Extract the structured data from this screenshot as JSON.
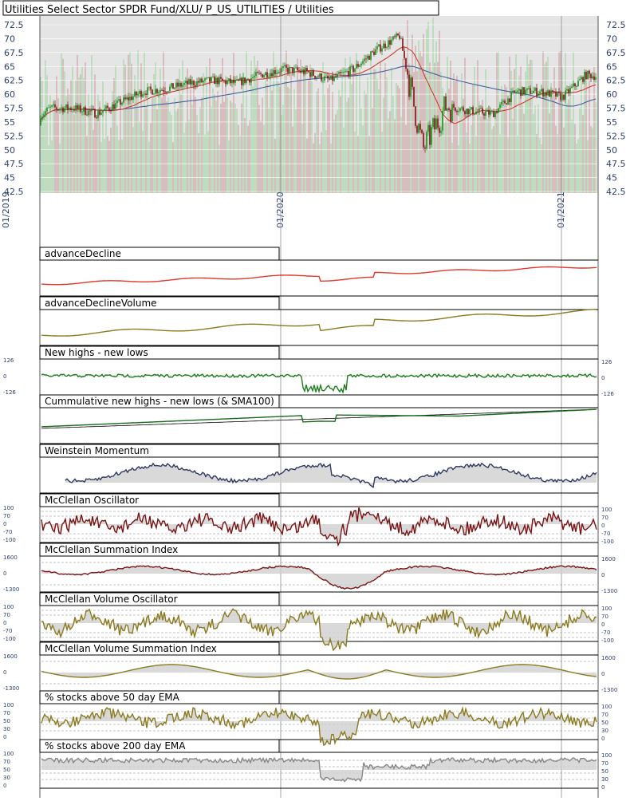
{
  "main": {
    "title": "Utilities Select Sector SPDR Fund/XLU/ P_US_UTILITIES / Utilities",
    "y_ticks": [
      "72.5",
      "70",
      "67.5",
      "65",
      "62.5",
      "60",
      "57.5",
      "55",
      "52.5",
      "50",
      "47.5",
      "45",
      "42.5"
    ],
    "x_labels": [
      "01/2019",
      "01/2020",
      "01/2021"
    ],
    "colors": {
      "up": "#1a8a1a",
      "down": "#7a1010",
      "sma50": "#d23b2e",
      "sma200": "#3f5f9f"
    }
  },
  "panels": [
    {
      "title": "advanceDecline",
      "ticks": []
    },
    {
      "title": "advanceDeclineVolume",
      "ticks": []
    },
    {
      "title": "New highs - new lows",
      "ticks": [
        "126",
        "0",
        "-126"
      ]
    },
    {
      "title": "Cummulative new highs - new lows (& SMA100)",
      "ticks": []
    },
    {
      "title": "Weinstein Momentum",
      "ticks": []
    },
    {
      "title": "McClellan Oscillator",
      "ticks": [
        "100",
        "70",
        "0",
        "-70",
        "-100"
      ]
    },
    {
      "title": "McClellan Summation Index",
      "ticks": [
        "1600",
        "0",
        "-1300"
      ]
    },
    {
      "title": "McClellan Volume Oscillator",
      "ticks": [
        "100",
        "70",
        "0",
        "-70",
        "-100"
      ]
    },
    {
      "title": "McClellan Volume Summation Index",
      "ticks": [
        "1600",
        "0",
        "-1300"
      ]
    },
    {
      "title": "% stocks above 50 day EMA",
      "ticks": [
        "100",
        "70",
        "50",
        "30",
        "0"
      ]
    },
    {
      "title": "% stocks above 200 day EMA",
      "ticks": [
        "100",
        "70",
        "50",
        "30",
        "0"
      ]
    }
  ],
  "chart_data": {
    "type": "line",
    "title": "Utilities Select Sector SPDR Fund/XLU/ P_US_UTILITIES / Utilities",
    "ylim": [
      42.5,
      72.5
    ],
    "x_labels": [
      "01/2019",
      "01/2020",
      "01/2021"
    ],
    "series": [
      {
        "name": "price",
        "points": [
          [
            "2018-10",
            54.5
          ],
          [
            "2018-11",
            57.5
          ],
          [
            "2018-12",
            57.5
          ],
          [
            "2019-01",
            56.5
          ],
          [
            "2019-02",
            58.5
          ],
          [
            "2019-03",
            60.5
          ],
          [
            "2019-04",
            61.0
          ],
          [
            "2019-05",
            62.0
          ],
          [
            "2019-06",
            62.5
          ],
          [
            "2019-07",
            62.0
          ],
          [
            "2019-08",
            63.5
          ],
          [
            "2019-09",
            64.5
          ],
          [
            "2019-10",
            64.0
          ],
          [
            "2019-11",
            62.5
          ],
          [
            "2019-12",
            64.5
          ],
          [
            "2020-01",
            68.0
          ],
          [
            "2020-02",
            70.5
          ],
          [
            "2020-03",
            50.0
          ],
          [
            "2020-04",
            58.0
          ],
          [
            "2020-05",
            57.0
          ],
          [
            "2020-06",
            56.5
          ],
          [
            "2020-07",
            60.5
          ],
          [
            "2020-08",
            60.5
          ],
          [
            "2020-09",
            59.5
          ],
          [
            "2020-10",
            63.5
          ],
          [
            "2020-11",
            63.0
          ],
          [
            "2020-12",
            62.5
          ],
          [
            "2021-01",
            63.5
          ],
          [
            "2021-02",
            59.5
          ],
          [
            "2021-03",
            62.5
          ],
          [
            "2021-04",
            64.5
          ],
          [
            "2021-05",
            62.5
          ],
          [
            "2021-06",
            62.0
          ]
        ]
      }
    ]
  }
}
